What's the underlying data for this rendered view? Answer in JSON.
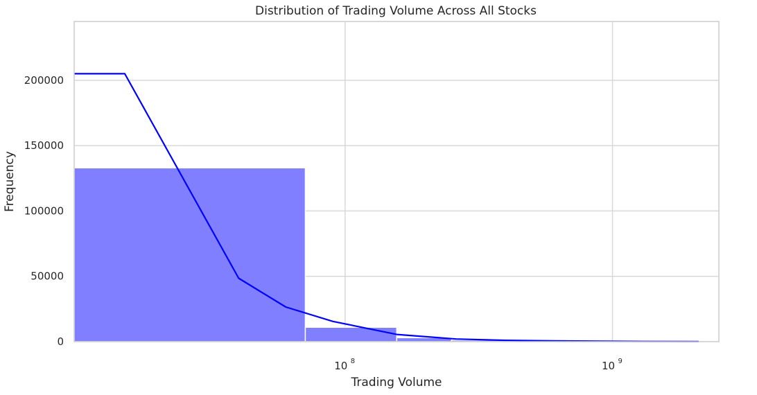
{
  "chart_data": {
    "type": "bar",
    "title": "Distribution of Trading Volume Across All Stocks",
    "xlabel": "Trading Volume",
    "ylabel": "Frequency",
    "x_scale": "log",
    "x_range": [
      9700000,
      2500000000
    ],
    "ylim": [
      0,
      245000
    ],
    "grid": true,
    "colors": {
      "bars": "#7f7fff",
      "bar_edge": "#ffffff",
      "kde_line": "#0000ff",
      "grid": "#d9d9d9",
      "frame": "#cccccc"
    },
    "y_ticks": [
      {
        "value": 0,
        "label": "0"
      },
      {
        "value": 50000,
        "label": "50000"
      },
      {
        "value": 100000,
        "label": "100000"
      },
      {
        "value": 150000,
        "label": "150000"
      },
      {
        "value": 200000,
        "label": "200000"
      }
    ],
    "x_ticks": [
      {
        "value": 100000000,
        "base": "10",
        "exponent": "8"
      },
      {
        "value": 1000000000,
        "base": "10",
        "exponent": "9"
      }
    ],
    "bins": [
      {
        "x0": 9700000,
        "x1": 71000000,
        "count": 133000
      },
      {
        "x0": 71000000,
        "x1": 156000000,
        "count": 11000
      },
      {
        "x0": 156000000,
        "x1": 250000000,
        "count": 3000
      },
      {
        "x0": 250000000,
        "x1": 400000000,
        "count": 1200
      },
      {
        "x0": 400000000,
        "x1": 700000000,
        "count": 500
      },
      {
        "x0": 700000000,
        "x1": 1200000000,
        "count": 200
      },
      {
        "x0": 1200000000,
        "x1": 2100000000,
        "count": 80
      }
    ],
    "kde": {
      "x": [
        9700000,
        15000000,
        40000000,
        60000000,
        90000000,
        156000000,
        260000000,
        400000000,
        600000000,
        900000000,
        1300000000,
        2100000000
      ],
      "y": [
        205000,
        205000,
        48500,
        26500,
        15500,
        5500,
        2000,
        1000,
        600,
        300,
        150,
        80
      ]
    }
  }
}
